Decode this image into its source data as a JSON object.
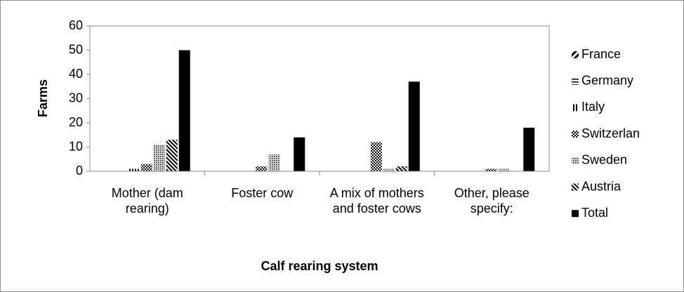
{
  "chart_data": {
    "type": "bar",
    "y_label": "Farms",
    "x_label": "Calf rearing system",
    "categories": [
      "Mother (dam rearing)",
      "Foster cow",
      "A mix of mothers and foster cows",
      "Other, please specify:"
    ],
    "series": [
      {
        "name": "France",
        "color": "#000000",
        "pattern": "wide-diagonal",
        "values": [
          0,
          0,
          0,
          0
        ]
      },
      {
        "name": "Germany",
        "color": "#000000",
        "pattern": "horizontal",
        "values": [
          0,
          0,
          0,
          0
        ]
      },
      {
        "name": "Italy",
        "color": "#000000",
        "pattern": "vertical",
        "values": [
          1,
          0,
          0,
          0
        ]
      },
      {
        "name": "Switzerlan",
        "color": "#000000",
        "pattern": "checker",
        "values": [
          3,
          2,
          12,
          1
        ]
      },
      {
        "name": "Sweden",
        "color": "#000000",
        "pattern": "dots",
        "values": [
          11,
          7,
          1,
          1
        ]
      },
      {
        "name": "Austria",
        "color": "#000000",
        "pattern": "dense-diagonal",
        "values": [
          13,
          0,
          2,
          0
        ]
      },
      {
        "name": "Total",
        "color": "#000000",
        "pattern": "solid",
        "values": [
          50,
          14,
          37,
          18
        ]
      }
    ],
    "ylim": [
      0,
      60
    ],
    "yticks": [
      0,
      10,
      20,
      30,
      40,
      50,
      60
    ],
    "grid": false,
    "legend": "right"
  }
}
